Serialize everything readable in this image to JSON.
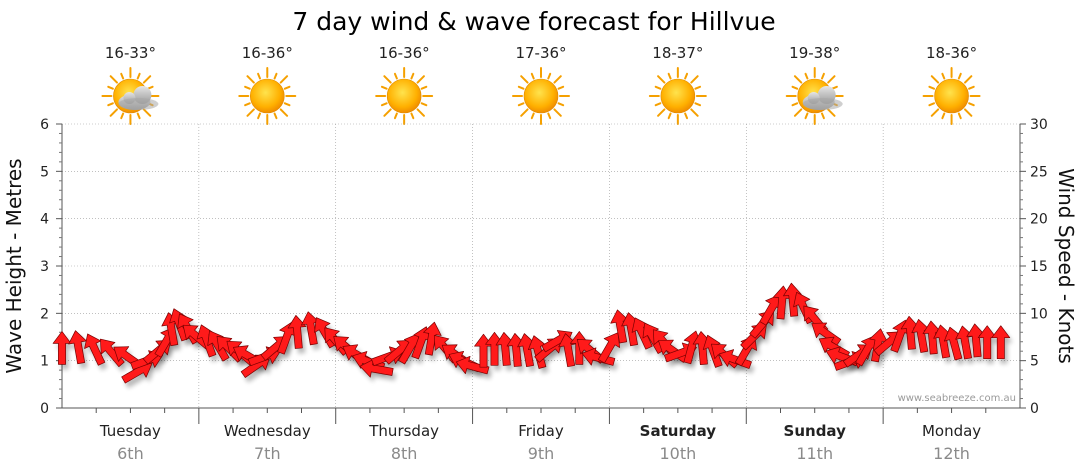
{
  "chart_data": {
    "type": "line",
    "title": "7 day wind & wave forecast for Hillvue",
    "y_left": {
      "label": "Wave Height - Metres",
      "lim": [
        0,
        6
      ],
      "ticks": [
        0,
        1,
        2,
        3,
        4,
        5,
        6
      ]
    },
    "y_right": {
      "label": "Wind Speed - Knots",
      "lim": [
        0,
        30
      ],
      "ticks": [
        0,
        5,
        10,
        15,
        20,
        25,
        30
      ]
    },
    "grid": true,
    "days": [
      {
        "name": "Tuesday",
        "date": "6th",
        "temp": "16-33°",
        "icon": "partly-cloudy-icon",
        "weekend": false
      },
      {
        "name": "Wednesday",
        "date": "7th",
        "temp": "16-36°",
        "icon": "sun-icon",
        "weekend": false
      },
      {
        "name": "Thursday",
        "date": "8th",
        "temp": "16-36°",
        "icon": "sun-icon",
        "weekend": false
      },
      {
        "name": "Friday",
        "date": "9th",
        "temp": "17-36°",
        "icon": "sun-icon",
        "weekend": false
      },
      {
        "name": "Saturday",
        "date": "10th",
        "temp": "18-37°",
        "icon": "sun-icon",
        "weekend": true
      },
      {
        "name": "Sunday",
        "date": "11th",
        "temp": "19-38°",
        "icon": "partly-cloudy-icon",
        "weekend": true
      },
      {
        "name": "Monday",
        "date": "12th",
        "temp": "18-36°",
        "icon": "sun-icon",
        "weekend": false
      }
    ],
    "wind_series": {
      "unit": "knots",
      "arrow_color": "#ff1a1a",
      "points": [
        {
          "d": 0.0,
          "v": 6.3,
          "a": -90
        },
        {
          "d": 0.12,
          "v": 6.4,
          "a": -100
        },
        {
          "d": 0.24,
          "v": 6.2,
          "a": -115
        },
        {
          "d": 0.36,
          "v": 5.9,
          "a": -130
        },
        {
          "d": 0.48,
          "v": 5.4,
          "a": -145
        },
        {
          "d": 0.55,
          "v": 3.8,
          "a": -30
        },
        {
          "d": 0.62,
          "v": 5.0,
          "a": -20
        },
        {
          "d": 0.7,
          "v": 6.0,
          "a": -40
        },
        {
          "d": 0.76,
          "v": 7.0,
          "a": -60
        },
        {
          "d": 0.8,
          "v": 8.3,
          "a": -100
        },
        {
          "d": 0.86,
          "v": 8.8,
          "a": -110
        },
        {
          "d": 0.92,
          "v": 8.4,
          "a": -120
        },
        {
          "d": 0.98,
          "v": 7.6,
          "a": -140
        },
        {
          "d": 1.06,
          "v": 7.1,
          "a": -110
        },
        {
          "d": 1.14,
          "v": 6.6,
          "a": -120
        },
        {
          "d": 1.22,
          "v": 6.3,
          "a": -135
        },
        {
          "d": 1.3,
          "v": 5.9,
          "a": -140
        },
        {
          "d": 1.36,
          "v": 5.5,
          "a": -150
        },
        {
          "d": 1.42,
          "v": 4.5,
          "a": -35
        },
        {
          "d": 1.48,
          "v": 5.4,
          "a": -20
        },
        {
          "d": 1.56,
          "v": 6.4,
          "a": -40
        },
        {
          "d": 1.64,
          "v": 7.4,
          "a": -70
        },
        {
          "d": 1.72,
          "v": 8.0,
          "a": -95
        },
        {
          "d": 1.82,
          "v": 8.4,
          "a": -100
        },
        {
          "d": 1.92,
          "v": 8.0,
          "a": -120
        },
        {
          "d": 2.0,
          "v": 7.1,
          "a": -130
        },
        {
          "d": 2.08,
          "v": 6.4,
          "a": -140
        },
        {
          "d": 2.16,
          "v": 5.6,
          "a": -150
        },
        {
          "d": 2.24,
          "v": 4.9,
          "a": -160
        },
        {
          "d": 2.3,
          "v": 4.1,
          "a": -170
        },
        {
          "d": 2.38,
          "v": 5.4,
          "a": -20
        },
        {
          "d": 2.46,
          "v": 6.0,
          "a": -40
        },
        {
          "d": 2.54,
          "v": 6.3,
          "a": -60
        },
        {
          "d": 2.62,
          "v": 6.9,
          "a": -70
        },
        {
          "d": 2.7,
          "v": 7.3,
          "a": -80
        },
        {
          "d": 2.8,
          "v": 6.3,
          "a": -130
        },
        {
          "d": 2.88,
          "v": 5.6,
          "a": -145
        },
        {
          "d": 2.94,
          "v": 4.9,
          "a": -155
        },
        {
          "d": 3.0,
          "v": 4.4,
          "a": -165
        },
        {
          "d": 3.08,
          "v": 6.0,
          "a": -90
        },
        {
          "d": 3.16,
          "v": 6.2,
          "a": -90
        },
        {
          "d": 3.24,
          "v": 6.2,
          "a": -95
        },
        {
          "d": 3.32,
          "v": 6.1,
          "a": -95
        },
        {
          "d": 3.4,
          "v": 6.1,
          "a": -100
        },
        {
          "d": 3.48,
          "v": 5.9,
          "a": -105
        },
        {
          "d": 3.56,
          "v": 6.2,
          "a": -40
        },
        {
          "d": 3.62,
          "v": 7.1,
          "a": -30
        },
        {
          "d": 3.7,
          "v": 6.1,
          "a": -100
        },
        {
          "d": 3.78,
          "v": 6.3,
          "a": -90
        },
        {
          "d": 3.86,
          "v": 6.1,
          "a": -140
        },
        {
          "d": 3.92,
          "v": 5.3,
          "a": -165
        },
        {
          "d": 4.0,
          "v": 6.4,
          "a": -60
        },
        {
          "d": 4.08,
          "v": 8.6,
          "a": -100
        },
        {
          "d": 4.16,
          "v": 8.3,
          "a": -100
        },
        {
          "d": 4.24,
          "v": 7.9,
          "a": -115
        },
        {
          "d": 4.32,
          "v": 7.4,
          "a": -120
        },
        {
          "d": 4.4,
          "v": 6.9,
          "a": -130
        },
        {
          "d": 4.46,
          "v": 6.1,
          "a": -145
        },
        {
          "d": 4.52,
          "v": 5.8,
          "a": -20
        },
        {
          "d": 4.6,
          "v": 6.4,
          "a": -75
        },
        {
          "d": 4.68,
          "v": 6.3,
          "a": -95
        },
        {
          "d": 4.76,
          "v": 6.0,
          "a": -110
        },
        {
          "d": 4.84,
          "v": 5.6,
          "a": -140
        },
        {
          "d": 4.92,
          "v": 5.1,
          "a": -160
        },
        {
          "d": 5.0,
          "v": 6.1,
          "a": -60
        },
        {
          "d": 5.06,
          "v": 7.6,
          "a": -45
        },
        {
          "d": 5.12,
          "v": 8.9,
          "a": -50
        },
        {
          "d": 5.18,
          "v": 10.4,
          "a": -60
        },
        {
          "d": 5.26,
          "v": 11.1,
          "a": -85
        },
        {
          "d": 5.34,
          "v": 11.4,
          "a": -95
        },
        {
          "d": 5.42,
          "v": 10.6,
          "a": -115
        },
        {
          "d": 5.5,
          "v": 9.4,
          "a": -130
        },
        {
          "d": 5.58,
          "v": 7.9,
          "a": -145
        },
        {
          "d": 5.64,
          "v": 6.4,
          "a": -150
        },
        {
          "d": 5.7,
          "v": 5.4,
          "a": -160
        },
        {
          "d": 5.76,
          "v": 4.9,
          "a": -20
        },
        {
          "d": 5.82,
          "v": 5.6,
          "a": -35
        },
        {
          "d": 5.88,
          "v": 6.1,
          "a": -60
        },
        {
          "d": 5.96,
          "v": 6.6,
          "a": -80
        },
        {
          "d": 6.04,
          "v": 6.9,
          "a": -40
        },
        {
          "d": 6.12,
          "v": 7.6,
          "a": -70
        },
        {
          "d": 6.2,
          "v": 7.9,
          "a": -95
        },
        {
          "d": 6.28,
          "v": 7.6,
          "a": -100
        },
        {
          "d": 6.36,
          "v": 7.4,
          "a": -95
        },
        {
          "d": 6.44,
          "v": 7.0,
          "a": -100
        },
        {
          "d": 6.52,
          "v": 6.8,
          "a": -105
        },
        {
          "d": 6.6,
          "v": 6.9,
          "a": -100
        },
        {
          "d": 6.68,
          "v": 7.1,
          "a": -95
        },
        {
          "d": 6.76,
          "v": 6.9,
          "a": -90
        },
        {
          "d": 6.86,
          "v": 6.9,
          "a": -90
        }
      ]
    }
  },
  "watermark": "www.seabreeze.com.au"
}
